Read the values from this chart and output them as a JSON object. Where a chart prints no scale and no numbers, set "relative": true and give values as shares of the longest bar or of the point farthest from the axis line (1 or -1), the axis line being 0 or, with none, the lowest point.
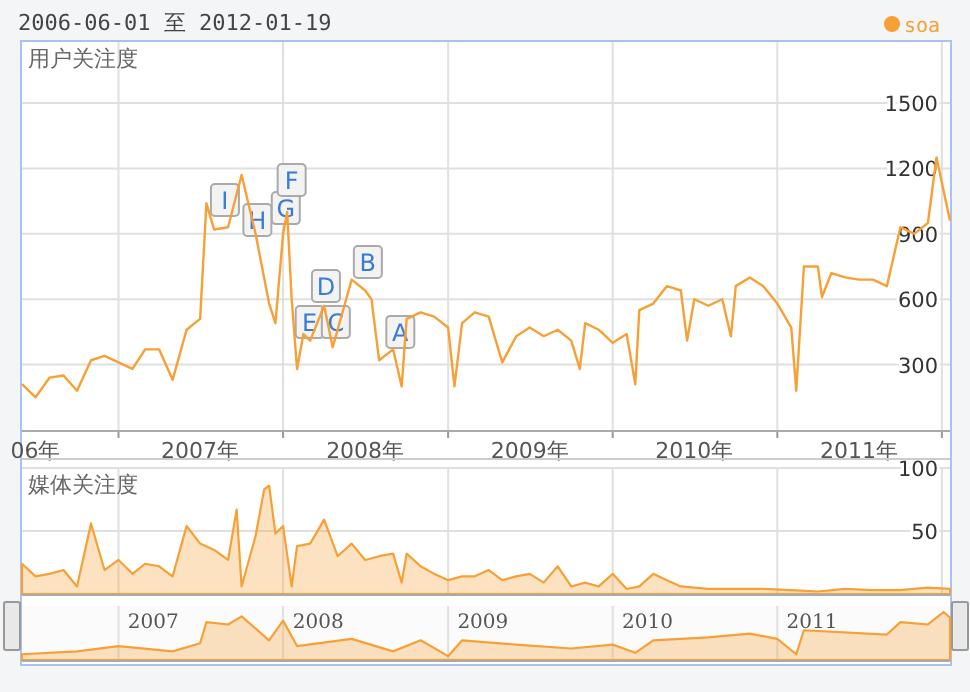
{
  "chart_data": [
    {
      "type": "line",
      "title": "用户关注度",
      "legend": "top right",
      "grid": true,
      "annotations": [
        "2006-06-01 至 2012-01-19",
        {
          "text": "I",
          "x": "2007-08-25",
          "y": 1055
        },
        {
          "text": "H",
          "x": "2007-11-05",
          "y": 963
        },
        {
          "text": "G",
          "x": "2008-01-07",
          "y": 1018
        },
        {
          "text": "F",
          "x": "2008-01-20",
          "y": 1147
        },
        {
          "text": "E",
          "x": "2008-02-29",
          "y": 495
        },
        {
          "text": "D",
          "x": "2008-04-05",
          "y": 661
        },
        {
          "text": "C",
          "x": "2008-04-27",
          "y": 495
        },
        {
          "text": "B",
          "x": "2008-07-07",
          "y": 771
        },
        {
          "text": "A",
          "x": "2008-09-17",
          "y": 450
        }
      ],
      "xlim": [
        "2006-06-01",
        "2012-01-19"
      ],
      "xticks": [
        {
          "value": "2006-07-01",
          "label": "06年"
        },
        {
          "value": "2007-01-01",
          "label": null
        },
        {
          "value": "2007-07-01",
          "label": "2007年"
        },
        {
          "value": "2008-01-01",
          "label": null
        },
        {
          "value": "2008-07-01",
          "label": "2008年"
        },
        {
          "value": "2009-01-01",
          "label": null
        },
        {
          "value": "2009-07-01",
          "label": "2009年"
        },
        {
          "value": "2010-01-01",
          "label": null
        },
        {
          "value": "2010-07-01",
          "label": "2010年"
        },
        {
          "value": "2011-01-01",
          "label": null
        },
        {
          "value": "2011-07-01",
          "label": "2011年"
        },
        {
          "value": "2012-01-01",
          "label": null
        }
      ],
      "ylim": [
        0,
        1780
      ],
      "yticks": [
        300,
        600,
        900,
        1200,
        1500
      ],
      "series": [
        {
          "name": "soa",
          "color": "#f7a035",
          "x": [
            "2006-06-01",
            "2006-07-01",
            "2006-08-01",
            "2006-09-01",
            "2006-10-01",
            "2006-11-01",
            "2006-12-01",
            "2007-01-01",
            "2007-02-01",
            "2007-03-01",
            "2007-04-01",
            "2007-05-01",
            "2007-06-01",
            "2007-07-01",
            "2007-07-15",
            "2007-08-01",
            "2007-09-01",
            "2007-10-01",
            "2007-11-01",
            "2007-12-01",
            "2007-12-15",
            "2008-01-01",
            "2008-01-10",
            "2008-01-20",
            "2008-02-01",
            "2008-02-15",
            "2008-03-01",
            "2008-04-01",
            "2008-04-20",
            "2008-05-01",
            "2008-06-01",
            "2008-07-01",
            "2008-07-15",
            "2008-08-01",
            "2008-09-01",
            "2008-09-20",
            "2008-10-01",
            "2008-11-01",
            "2008-12-01",
            "2009-01-01",
            "2009-01-15",
            "2009-02-01",
            "2009-03-01",
            "2009-04-01",
            "2009-05-01",
            "2009-06-01",
            "2009-07-01",
            "2009-08-01",
            "2009-09-01",
            "2009-10-01",
            "2009-10-20",
            "2009-11-01",
            "2009-12-01",
            "2010-01-01",
            "2010-02-01",
            "2010-02-20",
            "2010-03-01",
            "2010-04-01",
            "2010-05-01",
            "2010-06-01",
            "2010-06-15",
            "2010-07-01",
            "2010-08-01",
            "2010-09-01",
            "2010-09-20",
            "2010-10-01",
            "2010-11-01",
            "2010-12-01",
            "2011-01-01",
            "2011-02-01",
            "2011-02-12",
            "2011-03-01",
            "2011-04-01",
            "2011-04-10",
            "2011-05-01",
            "2011-06-01",
            "2011-07-01",
            "2011-08-01",
            "2011-09-01",
            "2011-10-01",
            "2011-11-01",
            "2011-12-01",
            "2011-12-20",
            "2012-01-19"
          ],
          "values": [
            210,
            150,
            240,
            250,
            180,
            320,
            340,
            310,
            280,
            370,
            370,
            230,
            460,
            510,
            1040,
            920,
            930,
            1170,
            900,
            580,
            490,
            900,
            1000,
            600,
            280,
            440,
            410,
            570,
            380,
            460,
            690,
            640,
            600,
            320,
            370,
            200,
            510,
            540,
            520,
            470,
            200,
            490,
            540,
            520,
            310,
            430,
            470,
            430,
            460,
            410,
            280,
            490,
            460,
            400,
            440,
            210,
            550,
            580,
            660,
            640,
            410,
            600,
            570,
            600,
            430,
            660,
            700,
            660,
            580,
            470,
            180,
            750,
            750,
            610,
            720,
            700,
            690,
            690,
            660,
            930,
            900,
            950,
            1250,
            960
          ]
        }
      ]
    },
    {
      "type": "area",
      "title": "媒体关注度",
      "grid": true,
      "xlim": [
        "2006-06-01",
        "2012-01-19"
      ],
      "xticks": [
        {
          "value": "2007-01-01",
          "label": null
        },
        {
          "value": "2008-01-01",
          "label": null
        },
        {
          "value": "2009-01-01",
          "label": null
        },
        {
          "value": "2010-01-01",
          "label": null
        },
        {
          "value": "2011-01-01",
          "label": null
        },
        {
          "value": "2012-01-01",
          "label": null
        }
      ],
      "tick_labels": "y",
      "ylim": [
        0,
        100
      ],
      "yticks": [
        50,
        100
      ],
      "series": [
        {
          "color": "#f7a035",
          "x": [
            "2006-06-01",
            "2006-07-01",
            "2006-08-01",
            "2006-09-01",
            "2006-10-01",
            "2006-11-01",
            "2006-12-01",
            "2007-01-01",
            "2007-02-01",
            "2007-03-01",
            "2007-04-01",
            "2007-05-01",
            "2007-06-01",
            "2007-07-01",
            "2007-08-01",
            "2007-09-01",
            "2007-09-20",
            "2007-10-01",
            "2007-11-01",
            "2007-11-20",
            "2007-12-01",
            "2007-12-15",
            "2008-01-01",
            "2008-01-20",
            "2008-02-01",
            "2008-03-01",
            "2008-04-01",
            "2008-05-01",
            "2008-06-01",
            "2008-07-01",
            "2008-08-01",
            "2008-09-01",
            "2008-09-20",
            "2008-10-01",
            "2008-11-01",
            "2008-12-01",
            "2009-01-01",
            "2009-02-01",
            "2009-03-01",
            "2009-04-01",
            "2009-05-01",
            "2009-06-01",
            "2009-07-01",
            "2009-08-01",
            "2009-09-01",
            "2009-10-01",
            "2009-11-01",
            "2009-12-01",
            "2010-01-01",
            "2010-02-01",
            "2010-03-01",
            "2010-04-01",
            "2010-05-01",
            "2010-06-01",
            "2010-08-01",
            "2010-10-01",
            "2010-12-01",
            "2011-02-01",
            "2011-04-01",
            "2011-06-01",
            "2011-08-01",
            "2011-10-01",
            "2011-12-01",
            "2012-01-19"
          ],
          "values": [
            24,
            14,
            16,
            19,
            6,
            56,
            19,
            27,
            16,
            24,
            22,
            14,
            54,
            40,
            35,
            27,
            67,
            6,
            46,
            83,
            86,
            48,
            54,
            6,
            38,
            40,
            59,
            30,
            40,
            27,
            30,
            32,
            9,
            32,
            22,
            16,
            11,
            14,
            14,
            19,
            11,
            14,
            16,
            9,
            22,
            6,
            9,
            6,
            16,
            4,
            6,
            16,
            11,
            6,
            4,
            4,
            4,
            3,
            2,
            4,
            3,
            3,
            5,
            4
          ]
        }
      ]
    },
    {
      "type": "area",
      "relative": true,
      "grid": "x",
      "xlim": [
        "2006-06-01",
        "2012-01-19"
      ],
      "xticks": [
        {
          "value": "2007-01-01",
          "label": null
        },
        {
          "value": "2007-03-19",
          "label": "2007"
        },
        {
          "value": "2008-01-01",
          "label": null
        },
        {
          "value": "2008-03-19",
          "label": "2008"
        },
        {
          "value": "2009-01-01",
          "label": null
        },
        {
          "value": "2009-03-19",
          "label": "2009"
        },
        {
          "value": "2010-01-01",
          "label": null
        },
        {
          "value": "2010-03-19",
          "label": "2010"
        },
        {
          "value": "2011-01-01",
          "label": null
        },
        {
          "value": "2011-03-19",
          "label": "2011"
        }
      ],
      "series": [
        {
          "color": "#f7a035",
          "x": [
            "2006-06-01",
            "2006-10-01",
            "2007-01-01",
            "2007-05-01",
            "2007-07-01",
            "2007-07-15",
            "2007-09-01",
            "2007-10-01",
            "2007-12-01",
            "2008-01-01",
            "2008-02-01",
            "2008-06-01",
            "2008-09-01",
            "2008-11-01",
            "2009-01-01",
            "2009-02-01",
            "2009-06-01",
            "2009-10-01",
            "2010-01-01",
            "2010-02-20",
            "2010-04-01",
            "2010-08-01",
            "2010-11-01",
            "2011-01-01",
            "2011-02-12",
            "2011-03-01",
            "2011-09-01",
            "2011-10-01",
            "2011-12-01",
            "2012-01-05",
            "2012-01-19"
          ],
          "values": [
            0.12,
            0.18,
            0.29,
            0.18,
            0.35,
            0.79,
            0.74,
            0.91,
            0.41,
            0.82,
            0.29,
            0.44,
            0.18,
            0.41,
            0.08,
            0.41,
            0.32,
            0.24,
            0.32,
            0.15,
            0.41,
            0.47,
            0.55,
            0.44,
            0.12,
            0.62,
            0.53,
            0.79,
            0.74,
            1,
            0.88
          ]
        }
      ]
    }
  ]
}
